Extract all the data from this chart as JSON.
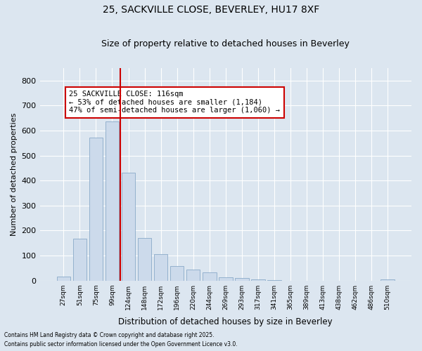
{
  "title1": "25, SACKVILLE CLOSE, BEVERLEY, HU17 8XF",
  "title2": "Size of property relative to detached houses in Beverley",
  "xlabel": "Distribution of detached houses by size in Beverley",
  "ylabel": "Number of detached properties",
  "bar_color": "#ccdaeb",
  "bar_edge_color": "#8aaac8",
  "background_color": "#dce6f0",
  "grid_color": "#ffffff",
  "categories": [
    "27sqm",
    "51sqm",
    "75sqm",
    "99sqm",
    "124sqm",
    "148sqm",
    "172sqm",
    "196sqm",
    "220sqm",
    "244sqm",
    "269sqm",
    "293sqm",
    "317sqm",
    "341sqm",
    "365sqm",
    "389sqm",
    "413sqm",
    "438sqm",
    "462sqm",
    "486sqm",
    "510sqm"
  ],
  "values": [
    17,
    168,
    573,
    637,
    432,
    170,
    105,
    57,
    44,
    32,
    13,
    10,
    6,
    1,
    0,
    0,
    0,
    0,
    0,
    0,
    6
  ],
  "redline_x": 3.5,
  "redline_color": "#cc0000",
  "annotation_text": "25 SACKVILLE CLOSE: 116sqm\n← 53% of detached houses are smaller (1,184)\n47% of semi-detached houses are larger (1,060) →",
  "annotation_box_color": "#ffffff",
  "annotation_box_edge": "#cc0000",
  "ylim": [
    0,
    850
  ],
  "yticks": [
    0,
    100,
    200,
    300,
    400,
    500,
    600,
    700,
    800
  ],
  "footnote1": "Contains HM Land Registry data © Crown copyright and database right 2025.",
  "footnote2": "Contains public sector information licensed under the Open Government Licence v3.0."
}
